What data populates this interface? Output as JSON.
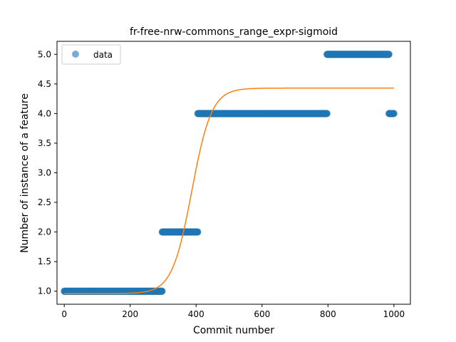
{
  "chart_data": {
    "type": "scatter",
    "title": "fr-free-nrw-commons_range_expr-sigmoid",
    "xlabel": "Commit number",
    "ylabel": "Number of instance of a feature",
    "xlim": [
      -22,
      1050
    ],
    "ylim": [
      0.78,
      5.22
    ],
    "x_ticks": [
      0,
      200,
      400,
      600,
      800,
      1000
    ],
    "y_ticks": [
      1.0,
      1.5,
      2.0,
      2.5,
      3.0,
      3.5,
      4.0,
      4.5,
      5.0
    ],
    "x_tick_labels": [
      "0",
      "200",
      "400",
      "600",
      "800",
      "1000"
    ],
    "y_tick_labels": [
      "1.0",
      "1.5",
      "2.0",
      "2.5",
      "3.0",
      "3.5",
      "4.0",
      "4.5",
      "5.0"
    ],
    "legend": {
      "entries": [
        "data"
      ],
      "position": "upper left"
    },
    "series": [
      {
        "name": "data",
        "kind": "points",
        "color": "#1f77b4",
        "segments": [
          {
            "x_start": 0,
            "x_end": 297,
            "y": 1.0
          },
          {
            "x_start": 297,
            "x_end": 405,
            "y": 2.0
          },
          {
            "x_start": 405,
            "x_end": 797,
            "y": 4.0
          },
          {
            "x_start": 797,
            "x_end": 985,
            "y": 5.0
          },
          {
            "x_start": 985,
            "x_end": 1000,
            "y": 4.0
          }
        ]
      },
      {
        "kind": "line",
        "color": "#ff7f0e",
        "model": "sigmoid",
        "params": {
          "lower": 0.96,
          "upper": 4.43,
          "midpoint": 387,
          "scale": 30
        },
        "x_range": [
          0,
          1000
        ]
      }
    ]
  }
}
